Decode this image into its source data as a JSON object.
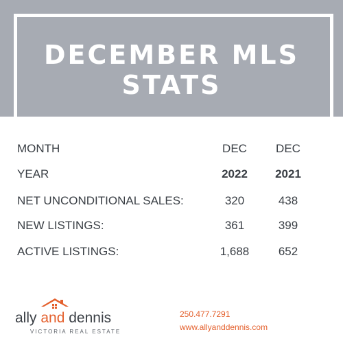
{
  "header": {
    "title": "DECEMBER MLS STATS"
  },
  "stats": {
    "rows": [
      {
        "label": "MONTH",
        "col1": "DEC",
        "col2": "DEC"
      },
      {
        "label": "YEAR",
        "col1": "2022",
        "col2": "2021"
      },
      {
        "label": "NET UNCONDITIONAL SALES:",
        "col1": "320",
        "col2": "438"
      },
      {
        "label": "NEW LISTINGS:",
        "col1": "361",
        "col2": "399"
      },
      {
        "label": "ACTIVE LISTINGS:",
        "col1": "1,688",
        "col2": "652"
      }
    ]
  },
  "logo": {
    "word1": "ally ",
    "word2": "and",
    "word3": " dennis",
    "tagline": "VICTORIA REAL ESTATE",
    "icon": "house-icon"
  },
  "contact": {
    "phone": "250.477.7291",
    "website": "www.allyanddennis.com"
  },
  "colors": {
    "header_band": "#a7abb3",
    "accent": "#e4602d",
    "text": "#3a3f45"
  }
}
